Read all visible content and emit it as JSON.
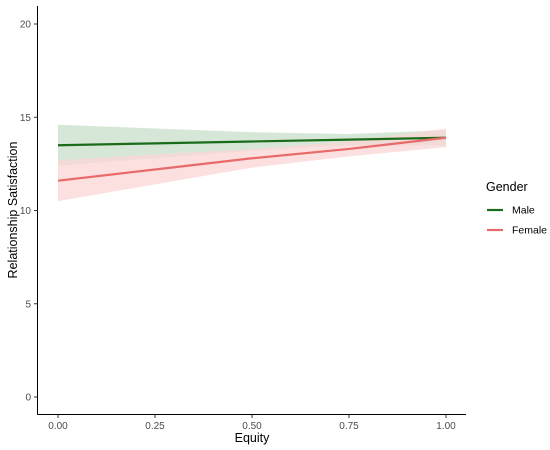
{
  "chart_data": {
    "type": "line",
    "xlabel": "Equity",
    "ylabel": "Relationship Satisfaction",
    "xlim": [
      0,
      1
    ],
    "ylim": [
      0,
      20
    ],
    "x_ticks": [
      "0.00",
      "0.25",
      "0.50",
      "0.75",
      "1.00"
    ],
    "y_ticks": [
      "0",
      "5",
      "10",
      "15",
      "20"
    ],
    "grid": false,
    "legend_position": "right",
    "legend": {
      "title": "Gender",
      "entries": [
        "Male",
        "Female"
      ]
    },
    "x": [
      0,
      0.25,
      0.5,
      0.75,
      1.0
    ],
    "series": [
      {
        "name": "Male",
        "color": "#1a6b1a",
        "band_color": "#c9dfc9",
        "values": [
          13.5,
          13.6,
          13.7,
          13.8,
          13.9
        ],
        "lower": [
          12.4,
          12.8,
          13.2,
          13.5,
          13.5
        ],
        "upper": [
          14.6,
          14.4,
          14.2,
          14.1,
          14.3
        ]
      },
      {
        "name": "Female",
        "color": "#e86a6a",
        "band_color": "#fbd6d6",
        "values": [
          11.6,
          12.2,
          12.8,
          13.3,
          13.9
        ],
        "lower": [
          10.5,
          11.4,
          12.3,
          12.9,
          13.4
        ],
        "upper": [
          12.7,
          13.0,
          13.3,
          13.7,
          14.4
        ]
      }
    ]
  }
}
